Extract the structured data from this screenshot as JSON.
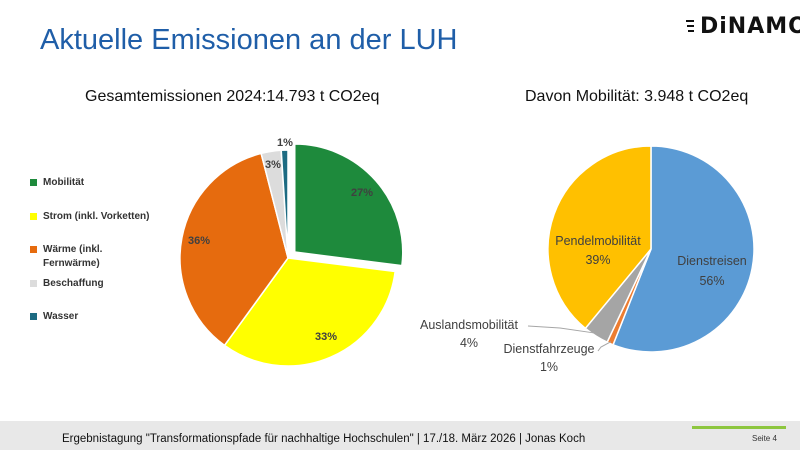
{
  "slide": {
    "title": "Aktuelle Emissionen an der LUH",
    "logo": "DiNAMO",
    "footer": "Ergebnistagung \"Transformationspfade für nachhaltige Hochschulen\" | 17./18. März 2026 | Jonas Koch",
    "page": "Seite 4"
  },
  "colors": {
    "title": "#1f5ea8",
    "footer_bg": "#e8e8e8",
    "footer_accent": "#8dc63f"
  },
  "chart_data": [
    {
      "type": "pie",
      "title": "Gesamtemissionen 2024:14.793 t CO2eq",
      "categories": [
        "Mobilität",
        "Strom (inkl. Vorketten)",
        "Wärme (inkl. Fernwärme)",
        "Beschaffung",
        "Wasser"
      ],
      "values": [
        27,
        33,
        36,
        3,
        1
      ],
      "labels": [
        "27%",
        "33%",
        "36%",
        "3%",
        "1%"
      ],
      "colors": [
        "#1e8a3c",
        "#ffff00",
        "#e66b0e",
        "#dcdcdc",
        "#1d6b82"
      ],
      "exploded": [
        "Mobilität"
      ],
      "legend": "left"
    },
    {
      "type": "pie",
      "title": "Davon Mobilität: 3.948 t CO2eq",
      "categories": [
        "Dienstreisen",
        "Dienstfahrzeuge",
        "Auslandsmobilität",
        "Pendelmobilität"
      ],
      "values": [
        56,
        1,
        4,
        39
      ],
      "labels": [
        "56%",
        "1%",
        "4%",
        "39%"
      ],
      "colors": [
        "#5b9bd5",
        "#ed7d31",
        "#a5a5a5",
        "#ffc000"
      ],
      "legend": "none"
    }
  ]
}
